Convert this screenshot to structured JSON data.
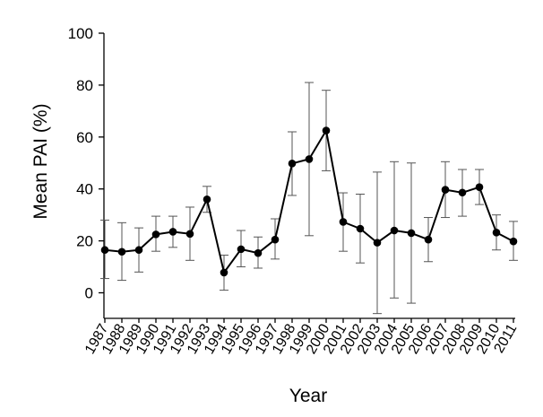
{
  "chart_data": {
    "type": "line",
    "title": "",
    "xlabel": "Year",
    "ylabel": "Mean PAI (%)",
    "ylim": [
      -9,
      100
    ],
    "yticks": [
      0,
      20,
      40,
      60,
      80,
      100
    ],
    "grid": false,
    "legend": "none",
    "error_bars": true,
    "colors": {
      "line": "#000000",
      "marker": "#000000",
      "error_bar": "#555555"
    },
    "x": [
      "1987",
      "1988",
      "1989",
      "1990",
      "1991",
      "1992",
      "1993",
      "1994",
      "1995",
      "1996",
      "1997",
      "1998",
      "1999",
      "2000",
      "2001",
      "2002",
      "2003",
      "2004",
      "2005",
      "2006",
      "2007",
      "2008",
      "2009",
      "2010",
      "2011"
    ],
    "series": [
      {
        "values": [
          16.5,
          15.8,
          16.5,
          22.5,
          23.5,
          22.7,
          36.0,
          7.8,
          16.8,
          15.3,
          20.5,
          49.8,
          51.5,
          62.5,
          27.3,
          24.7,
          19.3,
          24.0,
          23.0,
          20.5,
          39.7,
          38.6,
          40.7,
          23.2,
          19.8
        ],
        "error_lower": [
          5.5,
          4.8,
          8.0,
          16.0,
          17.5,
          12.5,
          31.0,
          1.0,
          10.0,
          9.5,
          13.0,
          37.5,
          22.0,
          47.0,
          16.0,
          11.5,
          -8.0,
          -2.0,
          -4.0,
          12.0,
          29.0,
          29.5,
          34.0,
          16.5,
          12.5
        ],
        "error_upper": [
          28.0,
          27.0,
          25.0,
          29.5,
          29.5,
          33.0,
          41.0,
          14.5,
          24.0,
          21.5,
          28.5,
          62.0,
          81.0,
          78.0,
          38.5,
          38.0,
          46.5,
          50.5,
          50.0,
          29.0,
          50.5,
          47.5,
          47.5,
          30.0,
          27.5
        ]
      }
    ]
  }
}
